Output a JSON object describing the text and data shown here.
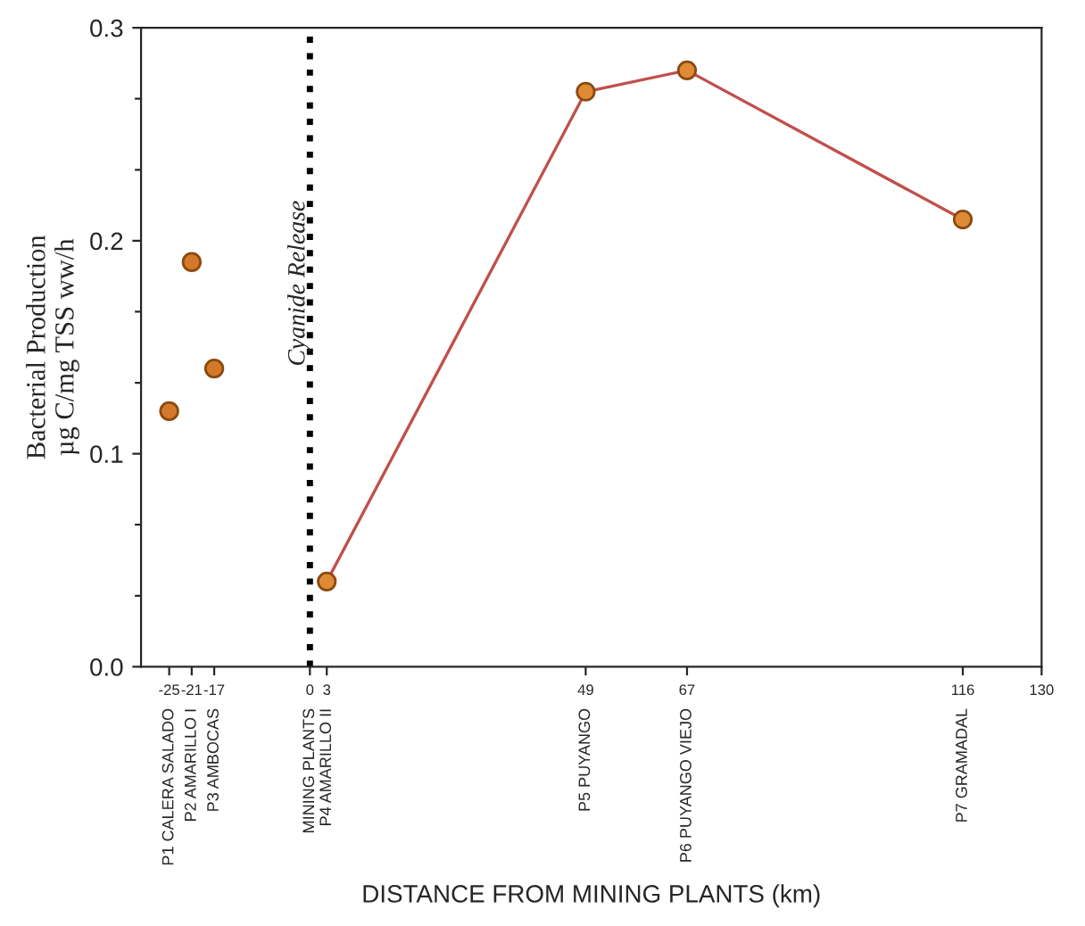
{
  "chart_data": {
    "type": "line",
    "ylabel": "Bacterial Production\nµg C/mg TSS ww/h",
    "series": [
      {
        "type": "scatter",
        "color": "#d4782a",
        "x": [
          -25,
          -21,
          -17
        ],
        "values": [
          0.12,
          0.19,
          0.14
        ]
      },
      {
        "color": "#c0504d",
        "x": [
          3,
          49,
          67,
          116
        ],
        "values": [
          0.04,
          0.27,
          0.28,
          0.21
        ]
      }
    ],
    "marker": "circle",
    "xlim": [
      -30,
      130
    ],
    "xticks": [
      -25,
      -21,
      -17,
      0,
      3,
      49,
      67,
      116,
      130
    ],
    "annotations": [
      "P1 CALERA SALADO",
      "P2 AMARILLO I",
      "P3 AMBOCAS",
      "MINING PLANTS",
      "P4 AMARILLO II",
      "P5 PUYANGO",
      "P6 PUYANGO VIEJO",
      "P7 GRAMADAL",
      "DISTANCE FROM MINING PLANTS (km)"
    ],
    "ylim": [
      0,
      0.3
    ],
    "yticks": [
      {
        "value": 0,
        "label": "0.0"
      },
      {
        "value": 0.0333,
        "label": null
      },
      {
        "value": 0.0667,
        "label": null
      },
      0.1,
      {
        "value": 0.1333,
        "label": null
      },
      {
        "value": 0.1667,
        "label": null
      },
      0.2,
      {
        "value": 0.2333,
        "label": null
      },
      {
        "value": 0.2667,
        "label": null
      },
      0.3
    ],
    "ref_lines": [
      {
        "axis": "x",
        "value": 0,
        "label": "Cyanide Release",
        "color": "#000000",
        "line_style": "dotted"
      }
    ],
    "grid": false,
    "legend": false
  }
}
